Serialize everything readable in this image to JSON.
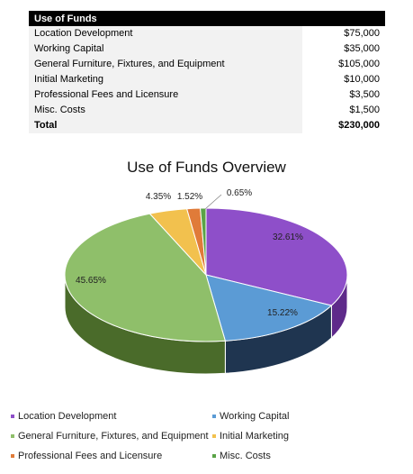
{
  "table": {
    "header": "Use of Funds",
    "rows": [
      {
        "label": "Location Development",
        "value": "$75,000"
      },
      {
        "label": "Working Capital",
        "value": "$35,000"
      },
      {
        "label": "General Furniture, Fixtures, and Equipment",
        "value": "$105,000"
      },
      {
        "label": "Initial Marketing",
        "value": "$10,000"
      },
      {
        "label": "Professional Fees and Licensure",
        "value": "$3,500"
      },
      {
        "label": "Misc. Costs",
        "value": "$1,500"
      }
    ],
    "total": {
      "label": "Total",
      "value": "$230,000"
    }
  },
  "chart_data": {
    "type": "pie",
    "title": "Use of Funds Overview",
    "categories": [
      "Location Development",
      "Working Capital",
      "General Furniture, Fixtures, and Equipment",
      "Initial Marketing",
      "Professional Fees and Licensure",
      "Misc. Costs"
    ],
    "values": [
      75000,
      35000,
      105000,
      10000,
      3500,
      1500
    ],
    "data_labels": [
      "32.61%",
      "15.22%",
      "45.65%",
      "4.35%",
      "1.52%",
      "0.65%"
    ],
    "colors": [
      "#8e4fc9",
      "#5b9bd5",
      "#8fbf6a",
      "#f2c14e",
      "#e07b39",
      "#5aa346"
    ],
    "side_colors": [
      "#5e2a8a",
      "#1f3550",
      "#4a6b2a",
      "#b08a20",
      "#9c4a1a",
      "#3a7030"
    ],
    "style": "3d",
    "legend_position": "bottom"
  }
}
